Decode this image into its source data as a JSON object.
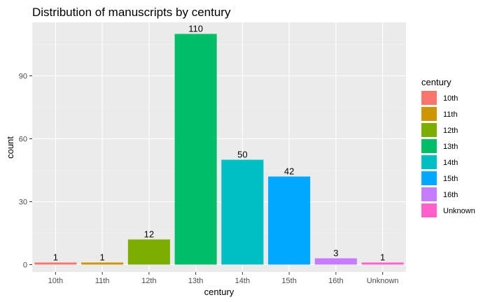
{
  "chart_data": {
    "type": "bar",
    "title": "Distribution of manuscripts by century",
    "xlabel": "century",
    "ylabel": "count",
    "categories": [
      "10th",
      "11th",
      "12th",
      "13th",
      "14th",
      "15th",
      "16th",
      "Unknown"
    ],
    "values": [
      1,
      1,
      12,
      110,
      50,
      42,
      3,
      1
    ],
    "colors": [
      "#F8766D",
      "#CD9600",
      "#7CAE00",
      "#00BE67",
      "#00BFC4",
      "#00A9FF",
      "#C77CFF",
      "#FF61CC"
    ],
    "ylim": [
      -3.5,
      115.5
    ],
    "yticks": [
      0,
      30,
      60,
      90
    ],
    "grid": true,
    "panel_background": "#EBEBEB",
    "legend": {
      "title": "century",
      "position": "right",
      "entries": [
        "10th",
        "11th",
        "12th",
        "13th",
        "14th",
        "15th",
        "16th",
        "Unknown"
      ]
    }
  }
}
